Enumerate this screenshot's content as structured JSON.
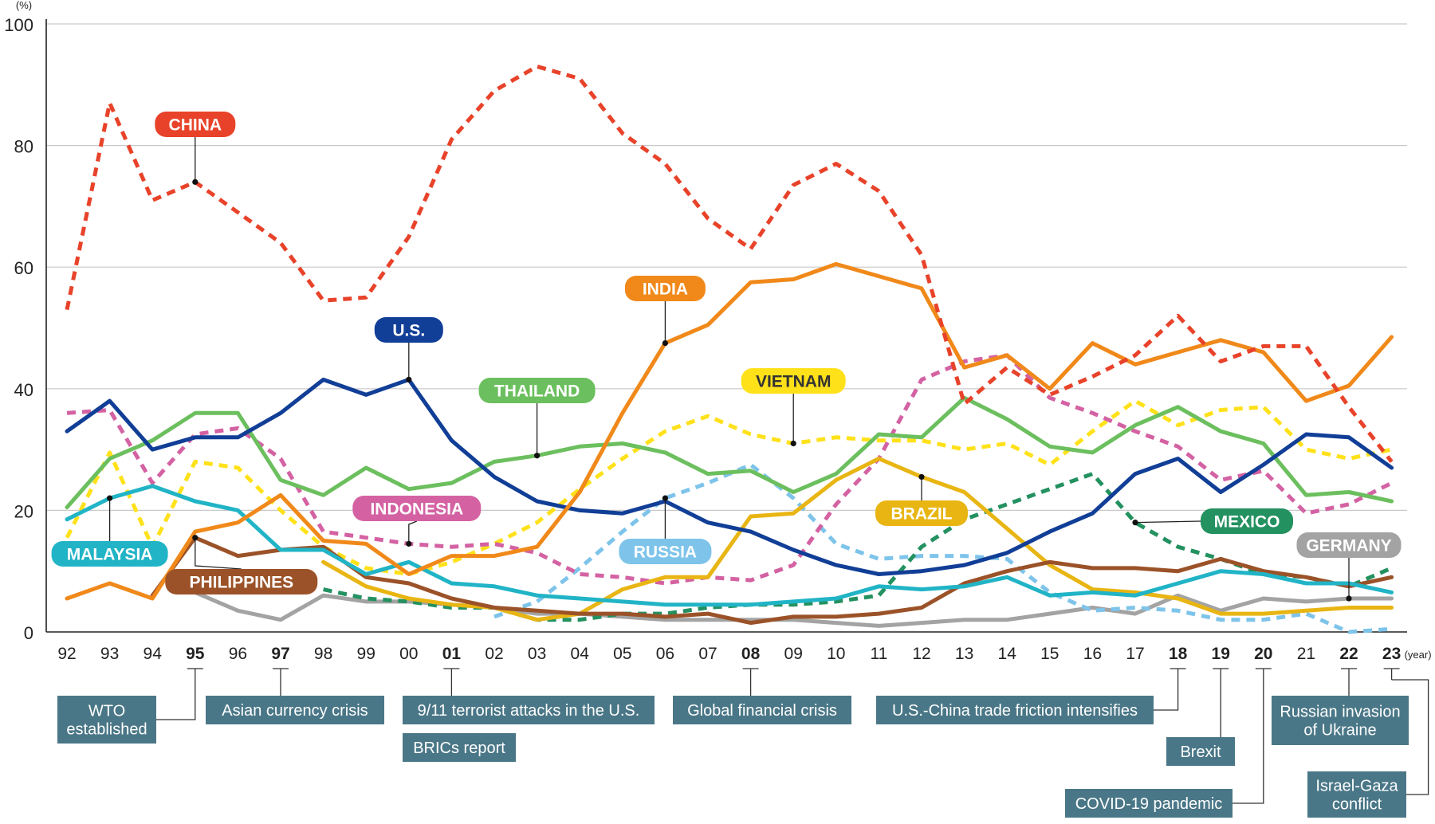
{
  "chart_data": {
    "type": "line",
    "unit_label": "(%)",
    "x_unit_label": "(year)",
    "ylim": [
      0,
      100
    ],
    "yticks": [
      0,
      20,
      40,
      60,
      80,
      100
    ],
    "grid": true,
    "x": [
      "92",
      "93",
      "94",
      "95",
      "96",
      "97",
      "98",
      "99",
      "00",
      "01",
      "02",
      "03",
      "04",
      "05",
      "06",
      "07",
      "08",
      "09",
      "10",
      "11",
      "12",
      "13",
      "14",
      "15",
      "16",
      "17",
      "18",
      "19",
      "20",
      "21",
      "22",
      "23"
    ],
    "bold_x": [
      "95",
      "97",
      "01",
      "08",
      "18",
      "19",
      "20",
      "22",
      "23"
    ],
    "series": [
      {
        "name": "CHINA",
        "color": "#e8432a",
        "dash": true,
        "label_at": "95",
        "values": [
          53,
          87,
          71,
          74,
          69,
          64,
          54.5,
          55,
          65,
          81,
          89,
          93,
          91,
          82,
          77,
          68,
          63,
          73.5,
          77,
          72.5,
          62,
          37.5,
          43.5,
          39,
          42,
          45.5,
          52,
          44.5,
          47,
          47,
          37,
          28
        ]
      },
      {
        "name": "INDIA",
        "color": "#f0891a",
        "dash": false,
        "label_at": "06",
        "values": [
          5.5,
          8,
          5.5,
          16.5,
          18,
          22.5,
          15,
          14.5,
          9.5,
          12.5,
          12.5,
          14,
          23,
          36,
          47.5,
          50.5,
          57.5,
          58,
          60.5,
          58.5,
          56.5,
          43.5,
          45.5,
          40,
          47.5,
          44,
          46,
          48,
          46,
          38,
          40.5,
          48.5
        ]
      },
      {
        "name": "U.S.",
        "color": "#113e96",
        "dash": false,
        "label_at": "00",
        "values": [
          33,
          38,
          30,
          32,
          32,
          36,
          41.5,
          39,
          41.5,
          31.5,
          25.5,
          21.5,
          20,
          19.5,
          21.5,
          18,
          16.5,
          13.5,
          11,
          9.5,
          10,
          11,
          13,
          16.5,
          19.5,
          26,
          28.5,
          23,
          27.5,
          32.5,
          32,
          27
        ]
      },
      {
        "name": "THAILAND",
        "color": "#6cbf5e",
        "dash": false,
        "label_at": "03",
        "values": [
          20.5,
          28.5,
          31.5,
          36,
          36,
          25,
          22.5,
          27,
          23.5,
          24.5,
          28,
          29,
          30.5,
          31,
          29.5,
          26,
          26.5,
          23,
          26,
          32.5,
          32,
          38.5,
          35,
          30.5,
          29.5,
          34,
          37,
          33,
          31,
          22.5,
          23,
          21.5
        ]
      },
      {
        "name": "VIETNAM",
        "color": "#ffe11a",
        "dash": true,
        "label_at": "09",
        "values": [
          15.5,
          29.5,
          14,
          28,
          27,
          20,
          14,
          10.5,
          9.5,
          11.5,
          14.5,
          18,
          23.5,
          28.5,
          33,
          35.5,
          32.5,
          31,
          32,
          31.5,
          31.5,
          30,
          31,
          27.5,
          33,
          38,
          34,
          36.5,
          37,
          30,
          28.5,
          30
        ]
      },
      {
        "name": "INDONESIA",
        "color": "#d462a3",
        "dash": true,
        "label_at": "99",
        "values": [
          36,
          36.5,
          24.5,
          32.5,
          33.5,
          28.5,
          16.5,
          15.5,
          14.5,
          14,
          14.5,
          13,
          9.5,
          9,
          8,
          9,
          8.5,
          11,
          21,
          28.5,
          41.5,
          44.5,
          45.5,
          38.5,
          36,
          33,
          30.5,
          25,
          26.5,
          19.5,
          21,
          24.5
        ]
      },
      {
        "name": "MALAYSIA",
        "color": "#21b4c6",
        "dash": false,
        "label_at": "93",
        "values": [
          18.5,
          22,
          24,
          21.5,
          20,
          13.5,
          13.5,
          9.5,
          11.5,
          8,
          7.5,
          6,
          5.5,
          5,
          4.5,
          4.5,
          4.5,
          5,
          5.5,
          7.5,
          7,
          7.5,
          9,
          6,
          6.5,
          6,
          8,
          10,
          9.5,
          8,
          8,
          6.5
        ]
      },
      {
        "name": "PHILIPPINES",
        "color": "#9b5228",
        "dash": false,
        "label_at": "95",
        "values": [
          null,
          null,
          6,
          15.5,
          12.5,
          13.5,
          14,
          9,
          8,
          5.5,
          4,
          3.5,
          3,
          3,
          2.5,
          3,
          1.5,
          2.5,
          2.5,
          3,
          4,
          8,
          10,
          11.5,
          10.5,
          10.5,
          10,
          12,
          10,
          9,
          7.5,
          9
        ]
      },
      {
        "name": "BRAZIL",
        "color": "#e8b513",
        "dash": false,
        "label_at": "12",
        "values": [
          null,
          null,
          null,
          null,
          null,
          null,
          11.5,
          7.5,
          5.5,
          4.5,
          4,
          2,
          3,
          7,
          9,
          9,
          19,
          19.5,
          25,
          28.5,
          25.5,
          23,
          17,
          11,
          7,
          6.5,
          5.5,
          3,
          3,
          3.5,
          4,
          4
        ]
      },
      {
        "name": "RUSSIA",
        "color": "#7ec4ea",
        "dash": true,
        "label_at": "06",
        "values": [
          null,
          null,
          null,
          null,
          null,
          null,
          null,
          null,
          null,
          null,
          2.5,
          5,
          10.5,
          16.5,
          22,
          24.5,
          27.5,
          22,
          14.5,
          12,
          12.5,
          12.5,
          12,
          6.5,
          3.5,
          4,
          3.5,
          2,
          2,
          3,
          0,
          0.5
        ]
      },
      {
        "name": "MEXICO",
        "color": "#239160",
        "dash": true,
        "label_at": "17",
        "values": [
          null,
          null,
          null,
          null,
          null,
          null,
          7,
          5.5,
          5,
          4,
          4,
          2,
          2,
          3,
          3,
          4,
          4.5,
          4.5,
          5,
          6,
          14,
          18.5,
          21,
          23.5,
          26,
          18,
          14,
          12,
          9.5,
          9,
          7.5,
          10.5
        ]
      },
      {
        "name": "GERMANY",
        "color": "#a3a3a3",
        "dash": false,
        "label_at": "22",
        "values": [
          null,
          null,
          null,
          6.5,
          3.5,
          2,
          6,
          5,
          5,
          4.5,
          4,
          3,
          3,
          2.5,
          2,
          2,
          2,
          2,
          1.5,
          1,
          1.5,
          2,
          2,
          3,
          4,
          3,
          6,
          3.5,
          5.5,
          5,
          5.5,
          5.5
        ]
      }
    ],
    "series_labels": [
      {
        "name": "CHINA",
        "text": "CHINA",
        "at": "95"
      },
      {
        "name": "INDIA",
        "text": "INDIA",
        "at": "06"
      },
      {
        "name": "U.S.",
        "text": "U.S.",
        "at": "00"
      },
      {
        "name": "THAILAND",
        "text": "THAILAND",
        "at": "03"
      },
      {
        "name": "VIETNAM",
        "text": "VIETNAM",
        "at": "09"
      },
      {
        "name": "INDONESIA",
        "text": "INDONESIA",
        "at": "00"
      },
      {
        "name": "MALAYSIA",
        "text": "MALAYSIA",
        "at": "93"
      },
      {
        "name": "PHILIPPINES",
        "text": "PHILIPPINES",
        "at": "95"
      },
      {
        "name": "BRAZIL",
        "text": "BRAZIL",
        "at": "12"
      },
      {
        "name": "RUSSIA",
        "text": "RUSSIA",
        "at": "06"
      },
      {
        "name": "MEXICO",
        "text": "MEXICO",
        "at": "17"
      },
      {
        "name": "GERMANY",
        "text": "GERMANY",
        "at": "22"
      }
    ],
    "events": [
      {
        "year": "95",
        "text": "WTO\nestablished"
      },
      {
        "year": "97",
        "text": "Asian currency crisis"
      },
      {
        "year": "01",
        "text": "9/11 terrorist attacks in the U.S."
      },
      {
        "year": "01",
        "text": "BRICs report"
      },
      {
        "year": "08",
        "text": "Global financial crisis"
      },
      {
        "year": "18",
        "text": "U.S.-China trade friction intensifies"
      },
      {
        "year": "19",
        "text": "Brexit"
      },
      {
        "year": "20",
        "text": "COVID-19 pandemic"
      },
      {
        "year": "22",
        "text": "Russian invasion\nof Ukraine"
      },
      {
        "year": "23",
        "text": "Israel-Gaza\nconflict"
      }
    ],
    "event_color": "#4a7787"
  }
}
